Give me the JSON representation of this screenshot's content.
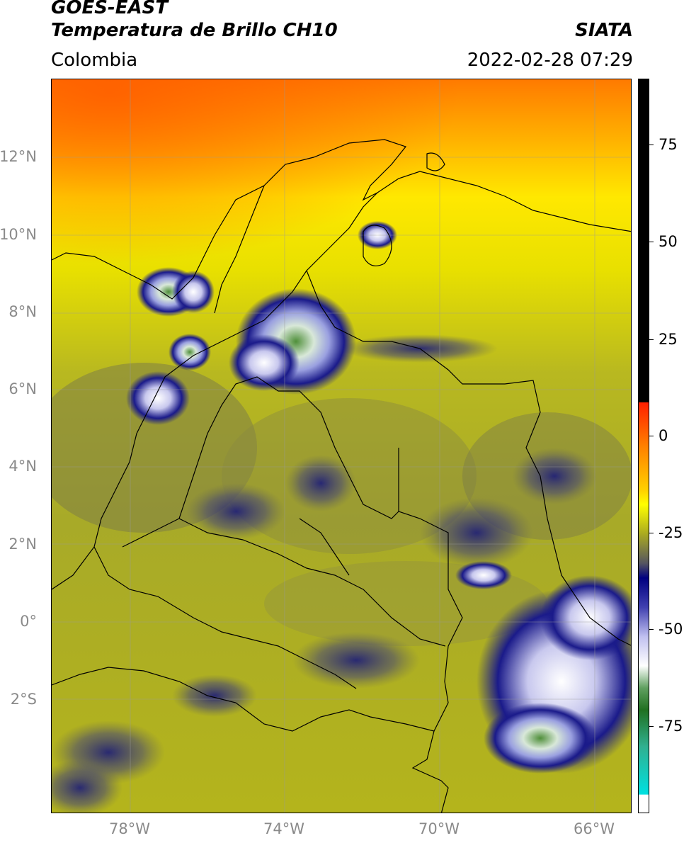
{
  "header": {
    "line1": "GOES-EAST",
    "line2": "Temperatura de Brillo CH10",
    "region": "Colombia",
    "org": "SIATA",
    "timestamp": "2022-02-28 07:29"
  },
  "lat_labels": [
    "12°N",
    "10°N",
    "8°N",
    "6°N",
    "4°N",
    "2°N",
    "0°",
    "2°S"
  ],
  "lon_labels": [
    "78°W",
    "74°W",
    "70°W",
    "66°W"
  ],
  "colorbar": {
    "labels": [
      "75",
      "50",
      "25",
      "0",
      "-25",
      "-50",
      "-75"
    ],
    "values": [
      75,
      50,
      25,
      0,
      -25,
      -50,
      -75
    ],
    "range": [
      -95,
      90
    ]
  }
}
